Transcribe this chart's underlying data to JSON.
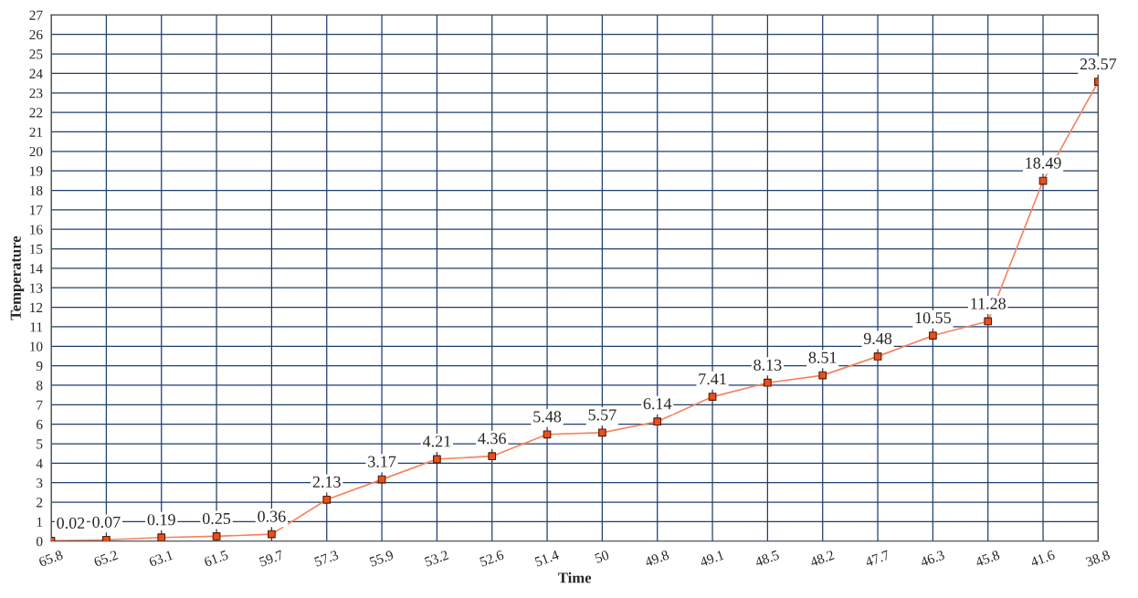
{
  "chart_data": {
    "type": "line",
    "xlabel": "Time",
    "ylabel": "Temperature",
    "categories": [
      "65.8",
      "65.2",
      "63.1",
      "61.5",
      "59.7",
      "57.3",
      "55.9",
      "53.2",
      "52.6",
      "51.4",
      "50",
      "49.8",
      "49.1",
      "48.5",
      "48.2",
      "47.7",
      "46.3",
      "45.8",
      "41.6",
      "38.8"
    ],
    "series": [
      {
        "color": "#f4845f",
        "values": [
          0.02,
          0.07,
          0.19,
          0.25,
          0.36,
          2.13,
          3.17,
          4.21,
          4.36,
          5.48,
          5.57,
          6.14,
          7.41,
          8.13,
          8.51,
          9.48,
          10.55,
          11.28,
          18.49,
          23.57
        ]
      }
    ],
    "ylim": [
      0,
      27
    ],
    "yticks": [
      0,
      1,
      2,
      3,
      4,
      5,
      6,
      7,
      8,
      9,
      10,
      11,
      12,
      13,
      14,
      15,
      16,
      17,
      18,
      19,
      20,
      21,
      22,
      23,
      24,
      25,
      26,
      27
    ],
    "grid": true,
    "marker": "square",
    "line_style": "solid",
    "data_labels": true,
    "legend": false
  }
}
